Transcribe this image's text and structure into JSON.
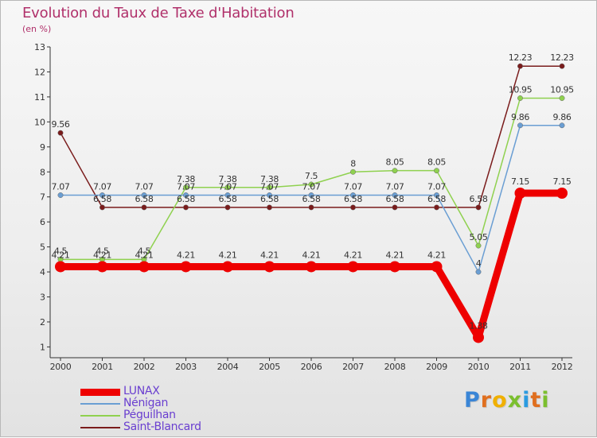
{
  "header": {
    "title": "Evolution du Taux de Taxe d'Habitation",
    "subtitle": "(en %)"
  },
  "brand": {
    "name": "Proxiti",
    "letters": [
      "P",
      "r",
      "o",
      "x",
      "i",
      "t",
      "i"
    ],
    "letter_colors": [
      "#3a85d6",
      "#e06f1f",
      "#f0b000",
      "#7bbf2e",
      "#2b9be0",
      "#e06f1f",
      "#7bbf2e"
    ]
  },
  "chart_data": {
    "type": "line",
    "title": "Evolution du Taux de Taxe d'Habitation",
    "ylabel": "(en %)",
    "xlabel": "",
    "ylim": [
      0.6,
      13
    ],
    "yticks": [
      1,
      2,
      3,
      4,
      5,
      6,
      7,
      8,
      9,
      10,
      11,
      12,
      13
    ],
    "categories": [
      "2000",
      "2001",
      "2002",
      "2003",
      "2004",
      "2005",
      "2006",
      "2007",
      "2008",
      "2009",
      "2010",
      "2011",
      "2012"
    ],
    "legend_position": "bottom-left",
    "grid": false,
    "series": [
      {
        "name": "Saint-Blancard",
        "color": "#7a1c1c",
        "width": 1.5,
        "values": [
          9.56,
          6.58,
          6.58,
          6.58,
          6.58,
          6.58,
          6.58,
          6.58,
          6.58,
          6.58,
          6.58,
          12.23,
          12.23
        ],
        "labels": [
          "9.56",
          "6.58",
          "6.58",
          "6.58",
          "6.58",
          "6.58",
          "6.58",
          "6.58",
          "6.58",
          "6.58",
          "6.58",
          "12.23",
          "12.23"
        ]
      },
      {
        "name": "Péguilhan",
        "color": "#8fd14f",
        "width": 1.5,
        "values": [
          4.5,
          4.5,
          4.5,
          7.38,
          7.38,
          7.38,
          7.5,
          8,
          8.05,
          8.05,
          5.05,
          10.95,
          10.95
        ],
        "labels": [
          "4.5",
          "4.5",
          "4.5",
          "7.38",
          "7.38",
          "7.38",
          "7.5",
          "8",
          "8.05",
          "8.05",
          "5.05",
          "10.95",
          "10.95"
        ]
      },
      {
        "name": "Nénigan",
        "color": "#6a9ed3",
        "width": 1.5,
        "values": [
          7.07,
          7.07,
          7.07,
          7.07,
          7.07,
          7.07,
          7.07,
          7.07,
          7.07,
          7.07,
          4,
          9.86,
          9.86
        ],
        "labels": [
          "7.07",
          "7.07",
          "7.07",
          "7.07",
          "7.07",
          "7.07",
          "7.07",
          "7.07",
          "7.07",
          "7.07",
          "4",
          "9.86",
          "9.86"
        ]
      },
      {
        "name": "LUNAX",
        "color": "#ee0000",
        "width": 9,
        "values": [
          4.21,
          4.21,
          4.21,
          4.21,
          4.21,
          4.21,
          4.21,
          4.21,
          4.21,
          4.21,
          1.38,
          7.15,
          7.15
        ],
        "labels": [
          "4.21",
          "4.21",
          "4.21",
          "4.21",
          "4.21",
          "4.21",
          "4.21",
          "4.21",
          "4.21",
          "4.21",
          "1.38",
          "7.15",
          "7.15"
        ]
      }
    ],
    "legend_order": [
      "LUNAX",
      "Nénigan",
      "Péguilhan",
      "Saint-Blancard"
    ]
  }
}
